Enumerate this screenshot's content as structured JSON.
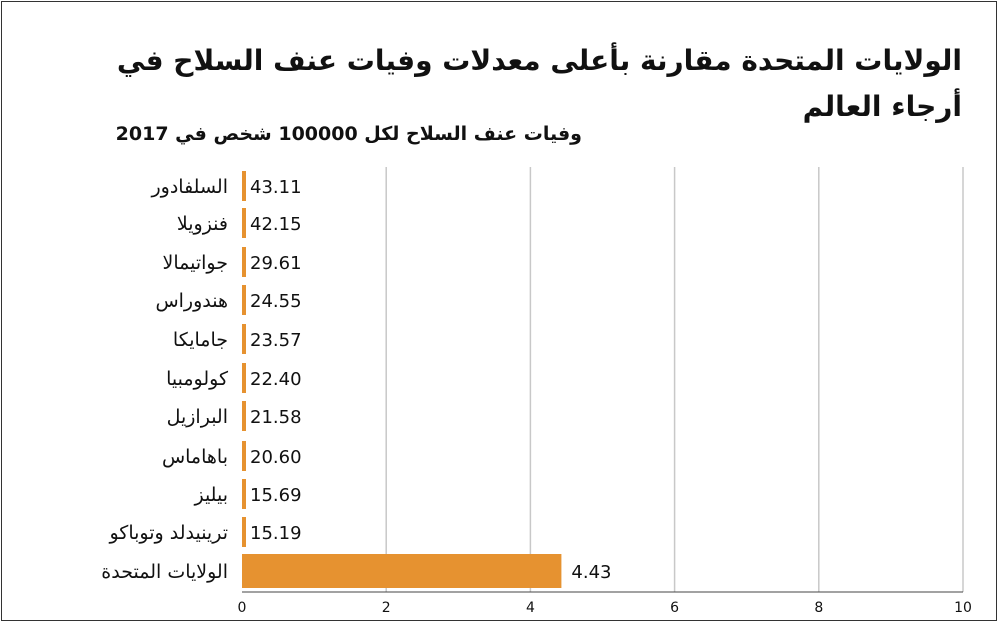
{
  "title": "الولايات المتحدة مقارنة بأعلى معدلات وفيات عنف السلاح في أرجاء العالم",
  "subtitle": "وفيات عنف السلاح لكل 100000 شخص في 2017",
  "colors": {
    "bar": "#E69230",
    "grid": "#c8c8c8",
    "axis": "#444444",
    "text": "#111111"
  },
  "chart_data": {
    "type": "bar",
    "orientation": "horizontal",
    "categories": [
      "السلفادور",
      "فنزويلا",
      "جواتيمالا",
      "هندوراس",
      "جامايكا",
      "كولومبيا",
      "البرازيل",
      "باهاماس",
      "بيليز",
      "ترينيدلد وتوباكو",
      "الولايات المتحدة"
    ],
    "values": [
      43.11,
      42.15,
      29.61,
      24.55,
      23.57,
      22.4,
      21.58,
      20.6,
      15.69,
      15.19,
      4.43
    ],
    "value_labels": [
      "43.11",
      "42.15",
      "29.61",
      "24.55",
      "23.57",
      "22.40",
      "21.58",
      "20.60",
      "15.69",
      "15.19",
      "4.43"
    ],
    "xlim": [
      0,
      10
    ],
    "xticks": [
      "0",
      "2",
      "4",
      "6",
      "8",
      "10"
    ],
    "grid": true
  }
}
